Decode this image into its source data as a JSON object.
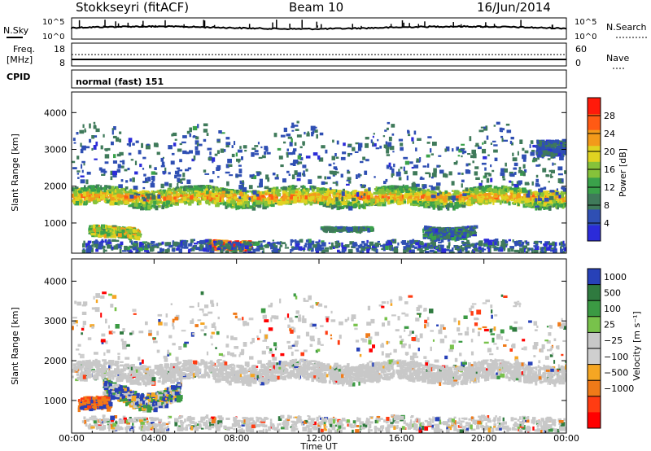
{
  "header": {
    "station": "Stokkseyri (fitACF)",
    "beam": "Beam 10",
    "date": "16/Jun/2014"
  },
  "noise_panel": {
    "left_label": "N.Sky",
    "right_label": "N.Search",
    "top_tick": "10^5",
    "bottom_tick": "10^0"
  },
  "freq_panel": {
    "left_label_line1": "Freq.",
    "left_label_line2": "[MHz]",
    "left_ticks": [
      "18",
      "8"
    ],
    "right_label": "Nave",
    "right_ticks": [
      "60",
      "0"
    ]
  },
  "cpid_panel": {
    "label": "CPID",
    "mode": "normal (fast) 151"
  },
  "colors": {
    "power_scale": [
      "#2b2bd9",
      "#2f4fb3",
      "#3f7a5a",
      "#3aa24a",
      "#86c23a",
      "#e0d321",
      "#f39a1a",
      "#ff5a14",
      "#ff1a0a"
    ],
    "velocity_scale": [
      "#2741b8",
      "#2f7a3f",
      "#3b9a43",
      "#78c24b",
      "#c8c8c8",
      "#cfcfcf",
      "#f5a623",
      "#f07a18",
      "#ff3c12",
      "#ff0000"
    ]
  },
  "chart_data": [
    {
      "type": "heatmap",
      "name": "power",
      "xlabel": "",
      "ylabel": "Slant Range [km]",
      "xlim": [
        "00:00",
        "00:00"
      ],
      "ylim": [
        180,
        4560
      ],
      "yticks": [
        1000,
        2000,
        3000,
        4000
      ],
      "colorbar_label": "Power [dB]",
      "colorbar_range": [
        0,
        32
      ],
      "colorbar_ticks": [
        "4",
        "8",
        "12",
        "16",
        "20",
        "24",
        "28"
      ],
      "features": [
        {
          "t_start": 0.0,
          "t_end": 24.0,
          "range_km": 1750,
          "value": 18
        },
        {
          "t_start": 0.0,
          "t_end": 2.0,
          "range_km": 3200,
          "value": 10
        },
        {
          "t_start": 6.5,
          "t_end": 8.5,
          "range_km": 450,
          "value": 26
        },
        {
          "t_start": 1.0,
          "t_end": 3.0,
          "range_km": 800,
          "value": 22
        },
        {
          "t_start": 22.5,
          "t_end": 24.0,
          "range_km": 3150,
          "value": 8
        }
      ]
    },
    {
      "type": "heatmap",
      "name": "velocity",
      "xlabel": "Time UT",
      "ylabel": "Slant Range [km]",
      "xlim": [
        "00:00",
        "00:00"
      ],
      "ylim": [
        180,
        4560
      ],
      "yticks": [
        1000,
        2000,
        3000,
        4000
      ],
      "xticks": [
        "00:00",
        "04:00",
        "08:00",
        "12:00",
        "16:00",
        "20:00",
        "00:00"
      ],
      "colorbar_label": "Velocity [m s⁻¹]",
      "colorbar_ticks": [
        "1000",
        "500",
        "100",
        "25",
        "−25",
        "−100",
        "−500",
        "−1000"
      ],
      "features": [
        {
          "t_start": 0.0,
          "t_end": 24.0,
          "range_km": 1750,
          "value": 0
        },
        {
          "t_start": 1.5,
          "t_end": 5.0,
          "range_km": 1200,
          "value": 300
        },
        {
          "t_start": 0.5,
          "t_end": 2.0,
          "range_km": 900,
          "value": -400
        }
      ]
    }
  ]
}
